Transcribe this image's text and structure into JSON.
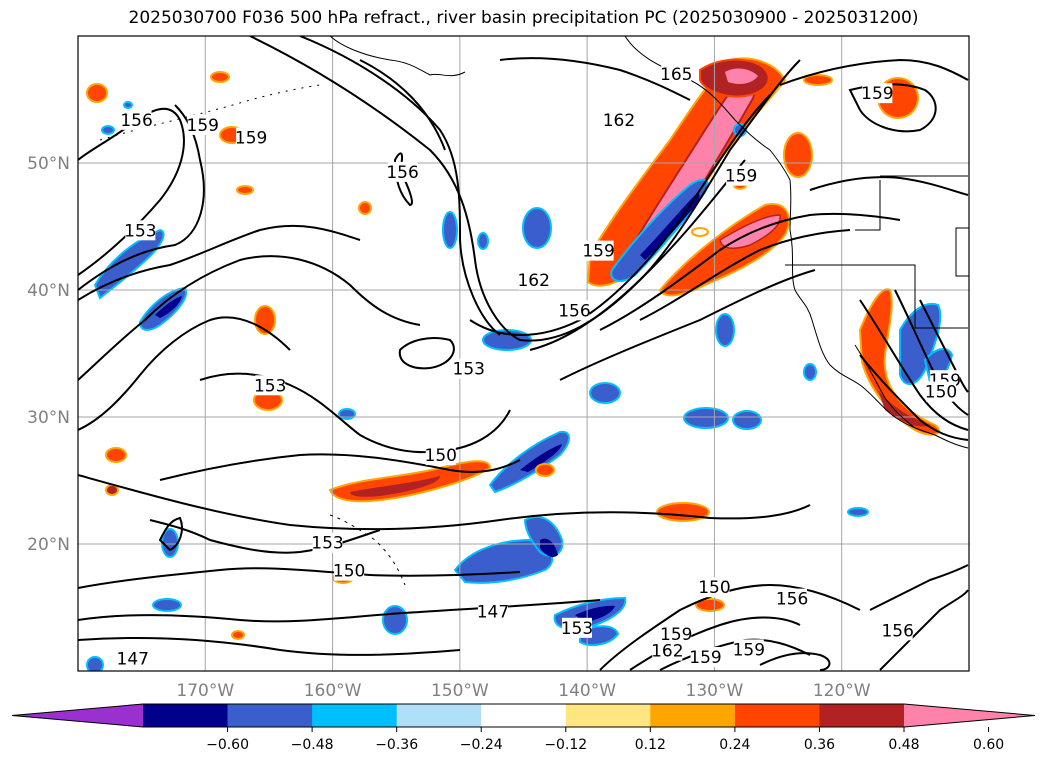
{
  "title": "2025030700 F036 500 hPa refract., river basin precipitation PC (2025030900 - 2025031200)",
  "map": {
    "projection": "cylindrical",
    "lon_range": [
      -180,
      -110
    ],
    "lat_range": [
      10,
      60
    ],
    "meridians": [
      -170,
      -160,
      -150,
      -140,
      -130,
      -120
    ],
    "parallels": [
      20,
      30,
      40,
      50
    ],
    "lat_labels": [
      "20°N",
      "30°N",
      "40°N",
      "50°N"
    ],
    "lon_labels": [
      "170°W",
      "160°W",
      "150°W",
      "140°W",
      "130°W",
      "120°W"
    ]
  },
  "contour_labels": [
    {
      "text": "159",
      "lon": -170.2,
      "lat": 53.0
    },
    {
      "text": "156",
      "lon": -175.4,
      "lat": 53.4
    },
    {
      "text": "159",
      "lon": -166.4,
      "lat": 52.0
    },
    {
      "text": "156",
      "lon": -154.5,
      "lat": 49.3
    },
    {
      "text": "153",
      "lon": -175.1,
      "lat": 44.7
    },
    {
      "text": "153",
      "lon": -164.9,
      "lat": 32.5
    },
    {
      "text": "153",
      "lon": -149.3,
      "lat": 33.8
    },
    {
      "text": "150",
      "lon": -151.5,
      "lat": 27.0
    },
    {
      "text": "153",
      "lon": -160.4,
      "lat": 20.1
    },
    {
      "text": "150",
      "lon": -158.7,
      "lat": 17.9
    },
    {
      "text": "147",
      "lon": -147.4,
      "lat": 14.7
    },
    {
      "text": "147",
      "lon": -175.7,
      "lat": 11.0
    },
    {
      "text": "165",
      "lon": -133.0,
      "lat": 57.0
    },
    {
      "text": "162",
      "lon": -137.5,
      "lat": 53.4
    },
    {
      "text": "159",
      "lon": -139.1,
      "lat": 43.1
    },
    {
      "text": "162",
      "lon": -144.2,
      "lat": 40.8
    },
    {
      "text": "156",
      "lon": -141.0,
      "lat": 38.4
    },
    {
      "text": "159",
      "lon": -127.9,
      "lat": 49.0
    },
    {
      "text": "159",
      "lon": -117.2,
      "lat": 55.5
    },
    {
      "text": "150",
      "lon": -130.0,
      "lat": 16.6
    },
    {
      "text": "156",
      "lon": -123.9,
      "lat": 15.7
    },
    {
      "text": "159",
      "lon": -133.0,
      "lat": 12.9
    },
    {
      "text": "162",
      "lon": -133.7,
      "lat": 11.6
    },
    {
      "text": "159",
      "lon": -130.7,
      "lat": 11.1
    },
    {
      "text": "159",
      "lon": -127.3,
      "lat": 11.7
    },
    {
      "text": "156",
      "lon": -115.6,
      "lat": 13.2
    },
    {
      "text": "159",
      "lon": -111.9,
      "lat": 32.9
    },
    {
      "text": "150",
      "lon": -112.2,
      "lat": 32.0
    },
    {
      "text": "153",
      "lon": -140.8,
      "lat": 13.4
    }
  ],
  "colorbar": {
    "ticks": [
      "−0.60",
      "−0.48",
      "−0.36",
      "−0.24",
      "−0.12",
      "0.12",
      "0.24",
      "0.36",
      "0.48",
      "0.60"
    ],
    "colors": [
      "#9b30d0",
      "#00008b",
      "#3a5fcd",
      "#00bfff",
      "#b0e0f8",
      "#ffffff",
      "#ffe680",
      "#ffa500",
      "#ff4500",
      "#b22222",
      "#ff82ab"
    ]
  }
}
